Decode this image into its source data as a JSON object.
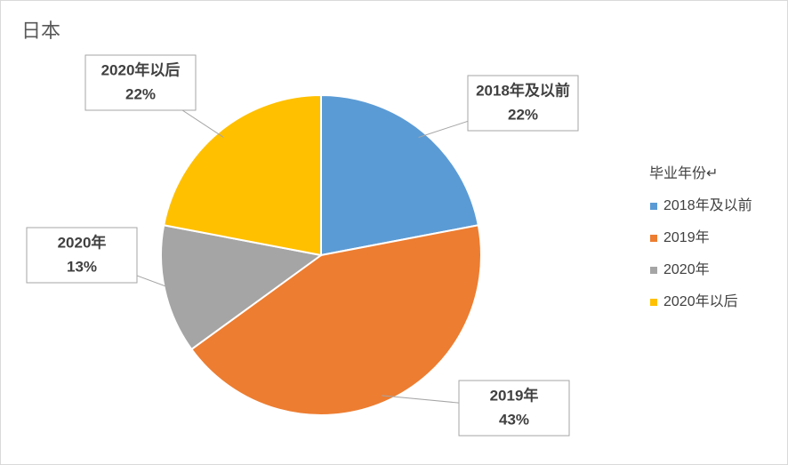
{
  "chart_data": {
    "type": "pie",
    "title": "日本",
    "legend_title": "毕业年份↵",
    "categories": [
      "2018年及以前",
      "2019年",
      "2020年",
      "2020年以后"
    ],
    "values": [
      22,
      43,
      13,
      22
    ],
    "value_labels": [
      "22%",
      "43%",
      "13%",
      "22%"
    ],
    "colors": [
      "#5b9bd5",
      "#ed7d31",
      "#a5a5a5",
      "#ffc000"
    ],
    "legend": "right"
  }
}
